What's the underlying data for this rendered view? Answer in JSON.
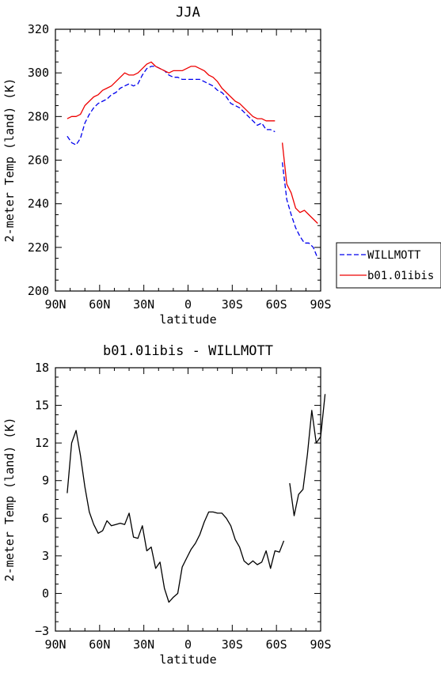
{
  "chart_data": [
    {
      "type": "line",
      "title": "JJA",
      "xlabel": "latitude",
      "ylabel": "2-meter Temp (land) (K)",
      "xlim": [
        90,
        -90
      ],
      "ylim": [
        200,
        320
      ],
      "xticks": [
        {
          "v": 90,
          "label": "90N"
        },
        {
          "v": 60,
          "label": "60N"
        },
        {
          "v": 30,
          "label": "30N"
        },
        {
          "v": 0,
          "label": "0"
        },
        {
          "v": -30,
          "label": "30S"
        },
        {
          "v": -60,
          "label": "60S"
        },
        {
          "v": -90,
          "label": "90S"
        }
      ],
      "yticks": [
        200,
        220,
        240,
        260,
        280,
        300,
        320
      ],
      "legend": {
        "position": "right"
      },
      "series": [
        {
          "name": "WILLMOTT",
          "color": "#0000ee",
          "dash": "dashed",
          "segments": [
            [
              [
                82,
                271
              ],
              [
                79,
                268
              ],
              [
                76,
                267
              ],
              [
                73,
                270
              ],
              [
                70,
                277
              ],
              [
                67,
                281
              ],
              [
                64,
                284
              ],
              [
                61,
                286
              ],
              [
                58,
                287
              ],
              [
                55,
                288
              ],
              [
                52,
                290
              ],
              [
                49,
                291
              ],
              [
                46,
                293
              ],
              [
                43,
                294
              ],
              [
                40,
                295
              ],
              [
                37,
                294
              ],
              [
                34,
                295
              ],
              [
                31,
                299
              ],
              [
                28,
                302
              ],
              [
                25,
                303
              ],
              [
                22,
                303
              ],
              [
                19,
                302
              ],
              [
                16,
                301
              ],
              [
                13,
                299
              ],
              [
                10,
                298
              ],
              [
                7,
                298
              ],
              [
                4,
                297
              ],
              [
                1,
                297
              ],
              [
                -2,
                297
              ],
              [
                -5,
                297
              ],
              [
                -8,
                297
              ],
              [
                -11,
                296
              ],
              [
                -14,
                295
              ],
              [
                -17,
                294
              ],
              [
                -20,
                292
              ],
              [
                -23,
                291
              ],
              [
                -26,
                289
              ],
              [
                -29,
                286
              ],
              [
                -32,
                285
              ],
              [
                -35,
                284
              ],
              [
                -38,
                282
              ],
              [
                -41,
                280
              ],
              [
                -44,
                278
              ],
              [
                -47,
                276
              ],
              [
                -50,
                277
              ],
              [
                -53,
                274
              ],
              [
                -56,
                274
              ],
              [
                -59,
                273
              ]
            ],
            [
              [
                -64,
                259
              ],
              [
                -67,
                242
              ],
              [
                -70,
                235
              ],
              [
                -73,
                229
              ],
              [
                -76,
                225
              ],
              [
                -79,
                222
              ],
              [
                -82,
                222
              ],
              [
                -85,
                220
              ],
              [
                -88,
                215
              ]
            ]
          ]
        },
        {
          "name": "b01.01ibis",
          "color": "#ee0000",
          "dash": "solid",
          "segments": [
            [
              [
                82,
                279
              ],
              [
                79,
                280
              ],
              [
                76,
                280
              ],
              [
                73,
                281
              ],
              [
                70,
                285
              ],
              [
                67,
                287
              ],
              [
                64,
                289
              ],
              [
                61,
                290
              ],
              [
                58,
                292
              ],
              [
                55,
                293
              ],
              [
                52,
                294
              ],
              [
                49,
                296
              ],
              [
                46,
                298
              ],
              [
                43,
                300
              ],
              [
                40,
                299
              ],
              [
                37,
                299
              ],
              [
                34,
                300
              ],
              [
                31,
                302
              ],
              [
                28,
                304
              ],
              [
                25,
                305
              ],
              [
                22,
                303
              ],
              [
                19,
                302
              ],
              [
                16,
                301
              ],
              [
                13,
                300
              ],
              [
                10,
                301
              ],
              [
                7,
                301
              ],
              [
                4,
                301
              ],
              [
                1,
                302
              ],
              [
                -2,
                303
              ],
              [
                -5,
                303
              ],
              [
                -8,
                302
              ],
              [
                -11,
                301
              ],
              [
                -14,
                299
              ],
              [
                -17,
                298
              ],
              [
                -20,
                296
              ],
              [
                -23,
                293
              ],
              [
                -26,
                291
              ],
              [
                -29,
                289
              ],
              [
                -32,
                287
              ],
              [
                -35,
                286
              ],
              [
                -38,
                284
              ],
              [
                -41,
                282
              ],
              [
                -44,
                280
              ],
              [
                -47,
                279
              ],
              [
                -50,
                279
              ],
              [
                -53,
                278
              ],
              [
                -56,
                278
              ],
              [
                -59,
                278
              ]
            ],
            [
              [
                -64,
                268
              ],
              [
                -67,
                249
              ],
              [
                -70,
                245
              ],
              [
                -73,
                238
              ],
              [
                -76,
                236
              ],
              [
                -79,
                237
              ],
              [
                -82,
                235
              ],
              [
                -85,
                233
              ],
              [
                -88,
                231
              ]
            ]
          ]
        }
      ]
    },
    {
      "type": "line",
      "title": "b01.01ibis - WILLMOTT",
      "xlabel": "latitude",
      "ylabel": "2-meter Temp (land) (K)",
      "xlim": [
        90,
        -90
      ],
      "ylim": [
        -3,
        18
      ],
      "xticks": [
        {
          "v": 90,
          "label": "90N"
        },
        {
          "v": 60,
          "label": "60N"
        },
        {
          "v": 30,
          "label": "30N"
        },
        {
          "v": 0,
          "label": "0"
        },
        {
          "v": -30,
          "label": "30S"
        },
        {
          "v": -60,
          "label": "60S"
        },
        {
          "v": -90,
          "label": "90S"
        }
      ],
      "yticks": [
        -3,
        0,
        3,
        6,
        9,
        12,
        15,
        18
      ],
      "series": [
        {
          "color": "#000000",
          "dash": "solid",
          "segments": [
            [
              [
                82,
                8.0
              ],
              [
                79,
                12.0
              ],
              [
                76,
                13.0
              ],
              [
                73,
                11.0
              ],
              [
                70,
                8.5
              ],
              [
                67,
                6.5
              ],
              [
                64,
                5.5
              ],
              [
                61,
                4.8
              ],
              [
                58,
                5.0
              ],
              [
                55,
                5.8
              ],
              [
                52,
                5.4
              ],
              [
                49,
                5.5
              ],
              [
                46,
                5.6
              ],
              [
                43,
                5.5
              ],
              [
                40,
                6.4
              ],
              [
                37,
                4.5
              ],
              [
                34,
                4.4
              ],
              [
                31,
                5.4
              ],
              [
                28,
                3.4
              ],
              [
                25,
                3.7
              ],
              [
                22,
                2.0
              ],
              [
                19,
                2.5
              ],
              [
                16,
                0.4
              ],
              [
                13,
                -0.7
              ],
              [
                10,
                -0.3
              ],
              [
                7,
                0.0
              ],
              [
                4,
                2.1
              ],
              [
                1,
                2.8
              ],
              [
                -2,
                3.5
              ],
              [
                -5,
                4.0
              ],
              [
                -8,
                4.7
              ],
              [
                -11,
                5.7
              ],
              [
                -14,
                6.5
              ],
              [
                -17,
                6.5
              ],
              [
                -20,
                6.4
              ],
              [
                -23,
                6.4
              ],
              [
                -26,
                6.0
              ],
              [
                -29,
                5.4
              ],
              [
                -32,
                4.3
              ],
              [
                -35,
                3.7
              ],
              [
                -38,
                2.6
              ],
              [
                -41,
                2.3
              ],
              [
                -44,
                2.6
              ],
              [
                -47,
                2.3
              ],
              [
                -50,
                2.5
              ],
              [
                -53,
                3.4
              ],
              [
                -56,
                2.0
              ],
              [
                -59,
                3.4
              ],
              [
                -62,
                3.3
              ],
              [
                -65,
                4.2
              ]
            ],
            [
              [
                -69,
                8.8
              ],
              [
                -72,
                6.2
              ],
              [
                -75,
                7.9
              ],
              [
                -78,
                8.3
              ],
              [
                -81,
                11.1
              ],
              [
                -84,
                14.6
              ],
              [
                -87,
                12.0
              ],
              [
                -90,
                12.5
              ],
              [
                -93,
                15.9
              ]
            ]
          ]
        }
      ]
    }
  ]
}
